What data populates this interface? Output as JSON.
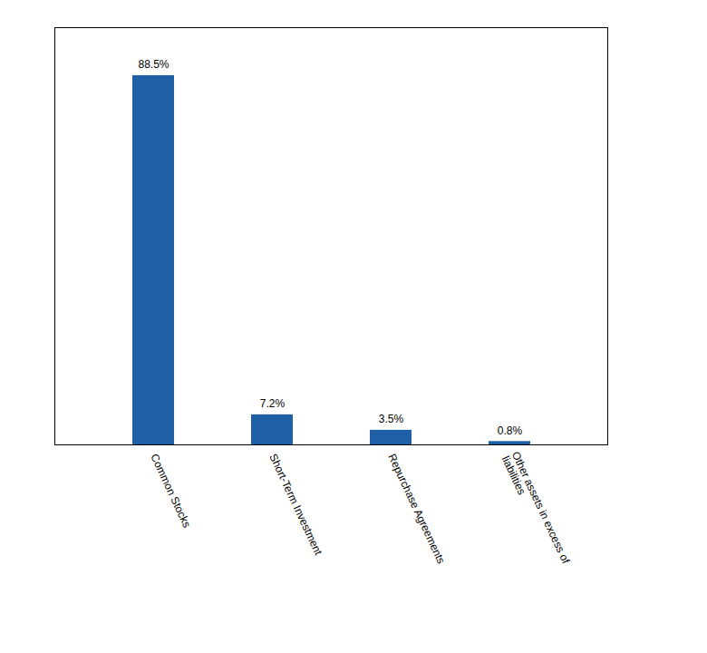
{
  "chart_data": {
    "type": "bar",
    "categories": [
      "Common Stocks",
      "Short-Term Investment",
      "Repurchase Agreements",
      "Other assets in excess of\nliabilities"
    ],
    "values": [
      88.5,
      7.2,
      3.5,
      0.8
    ],
    "value_labels": [
      "88.5%",
      "7.2%",
      "3.5%",
      "0.8%"
    ],
    "data_labels": true,
    "color": "#1f5fa6",
    "ylim": [
      0,
      100
    ],
    "tick_labels": "x"
  }
}
